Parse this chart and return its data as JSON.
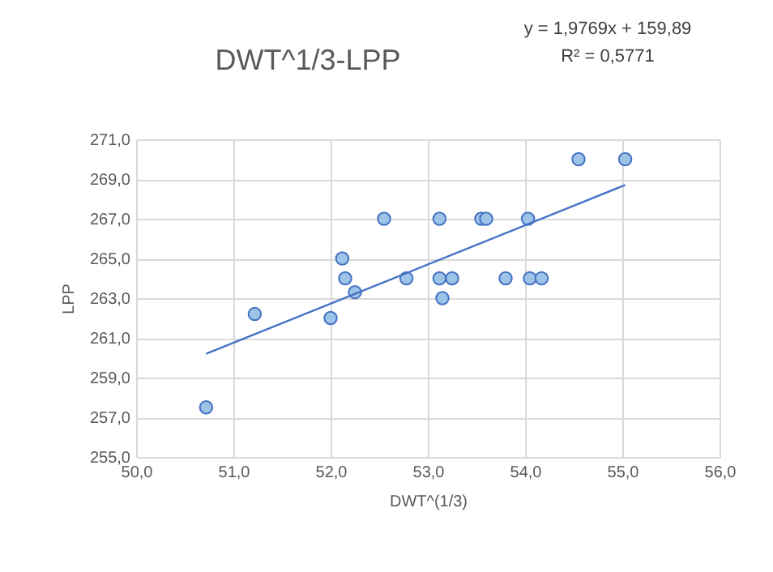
{
  "chart_data": {
    "type": "scatter",
    "title": "DWT^1/3-LPP",
    "xlabel": "DWT^(1/3)",
    "ylabel": "LPP",
    "annotations": [
      "y = 1,9769x + 159,89",
      "R² = 0,5771"
    ],
    "series": [
      {
        "type": "scatter",
        "color": "#9dc3e6",
        "marker": "circle",
        "x": [
          50.72,
          51.22,
          52.0,
          52.12,
          52.15,
          52.25,
          52.55,
          52.78,
          53.12,
          53.12,
          53.15,
          53.25,
          53.55,
          53.6,
          53.8,
          54.03,
          54.05,
          54.17,
          54.55,
          55.03
        ],
        "values": [
          257.5,
          262.2,
          262.0,
          265.0,
          264.0,
          263.3,
          267.0,
          264.0,
          267.0,
          264.0,
          263.0,
          264.0,
          267.0,
          267.0,
          264.0,
          267.0,
          264.0,
          264.0,
          270.0,
          270.0
        ]
      },
      {
        "type": "line",
        "color": "#4472c4",
        "marker": "none",
        "x": [
          50.72,
          55.03
        ],
        "values": [
          260.2,
          268.7
        ]
      }
    ],
    "xlim": [
      50,
      56
    ],
    "ylim": [
      255,
      271
    ],
    "xticks": [
      {
        "value": 50,
        "label": "50,0"
      },
      {
        "value": 51,
        "label": "51,0"
      },
      {
        "value": 52,
        "label": "52,0"
      },
      {
        "value": 53,
        "label": "53,0"
      },
      {
        "value": 54,
        "label": "54,0"
      },
      {
        "value": 55,
        "label": "55,0"
      },
      {
        "value": 56,
        "label": "56,0"
      }
    ],
    "yticks": [
      {
        "value": 255,
        "label": "255,0"
      },
      {
        "value": 257,
        "label": "257,0"
      },
      {
        "value": 259,
        "label": "259,0"
      },
      {
        "value": 261,
        "label": "261,0"
      },
      {
        "value": 263,
        "label": "263,0"
      },
      {
        "value": 265,
        "label": "265,0"
      },
      {
        "value": 267,
        "label": "267,0"
      },
      {
        "value": 269,
        "label": "269,0"
      },
      {
        "value": 271,
        "label": "271,0"
      }
    ],
    "grid": true
  }
}
